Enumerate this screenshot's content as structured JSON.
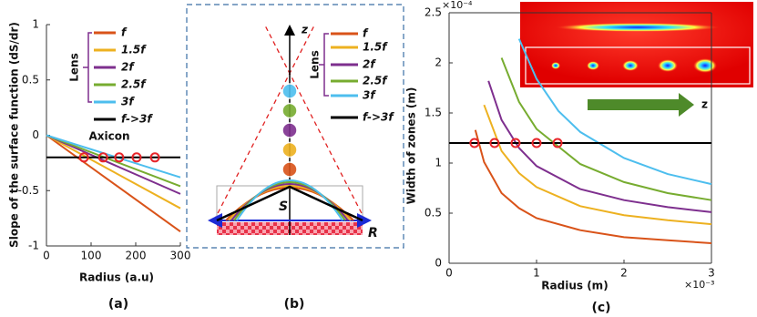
{
  "chart_data": [
    {
      "type": "line",
      "caption": "(a)",
      "xlabel": "Radius (a.u)",
      "ylabel": "Slope of the surface function (dS/dr)",
      "x": [
        0,
        300
      ],
      "xlim": [
        0,
        300
      ],
      "xticks": [
        0,
        100,
        200,
        300
      ],
      "ylim": [
        -1,
        1
      ],
      "yticks": [
        -1,
        -0.5,
        0,
        0.5,
        1
      ],
      "legend_title": "Lens",
      "annotation": "Axicon",
      "series": [
        {
          "name": "f",
          "color": "#d95319",
          "values": [
            0,
            -0.87
          ]
        },
        {
          "name": "1.5f",
          "color": "#edb120",
          "values": [
            0,
            -0.66
          ]
        },
        {
          "name": "2f",
          "color": "#7e2f8e",
          "values": [
            0,
            -0.53
          ]
        },
        {
          "name": "2.5f",
          "color": "#77ac30",
          "values": [
            0,
            -0.46
          ]
        },
        {
          "name": "3f",
          "color": "#4dbeee",
          "values": [
            0,
            -0.38
          ]
        },
        {
          "name": "f->3f",
          "color": "#000000",
          "values": [
            -0.2,
            -0.2
          ]
        }
      ],
      "markers": {
        "color": "#e8262b",
        "x": [
          84,
          127,
          163,
          202,
          243
        ],
        "y": [
          -0.2,
          -0.2,
          -0.2,
          -0.2,
          -0.2
        ]
      }
    },
    {
      "type": "line",
      "caption": "(c)",
      "xlabel": "Radius (m)",
      "ylabel": "Width of zones (m)",
      "xlim": [
        0,
        3
      ],
      "xticks": [
        0,
        1,
        2,
        3
      ],
      "ylim": [
        0,
        2.5
      ],
      "yticks": [
        0,
        0.5,
        1,
        1.5,
        2,
        2.5
      ],
      "x_multiplier": "×10⁻³",
      "y_multiplier": "×10⁻⁴",
      "inset_label": "z",
      "series": [
        {
          "color": "#d95319",
          "x": [
            0.3,
            0.4,
            0.6,
            0.8,
            1,
            1.5,
            2,
            2.5,
            3
          ],
          "values": [
            1.33,
            1.01,
            0.7,
            0.55,
            0.45,
            0.33,
            0.26,
            0.23,
            0.2
          ]
        },
        {
          "color": "#edb120",
          "x": [
            0.4,
            0.6,
            0.8,
            1,
            1.5,
            2,
            2.5,
            3
          ],
          "values": [
            1.58,
            1.12,
            0.9,
            0.76,
            0.57,
            0.48,
            0.43,
            0.39
          ]
        },
        {
          "color": "#7e2f8e",
          "x": [
            0.45,
            0.6,
            0.8,
            1,
            1.5,
            2,
            2.5,
            3
          ],
          "values": [
            1.82,
            1.43,
            1.15,
            0.97,
            0.74,
            0.63,
            0.56,
            0.51
          ]
        },
        {
          "color": "#77ac30",
          "x": [
            0.6,
            0.8,
            1,
            1.5,
            2,
            2.5,
            3
          ],
          "values": [
            2.05,
            1.61,
            1.34,
            0.99,
            0.81,
            0.7,
            0.63
          ]
        },
        {
          "color": "#4dbeee",
          "x": [
            0.8,
            1,
            1.25,
            1.5,
            2,
            2.5,
            3
          ],
          "values": [
            2.24,
            1.84,
            1.52,
            1.31,
            1.05,
            0.89,
            0.79
          ]
        },
        {
          "color": "#000000",
          "x": [
            0,
            3
          ],
          "values": [
            1.2,
            1.2
          ]
        }
      ],
      "markers": {
        "color": "#e8262b",
        "x": [
          0.29,
          0.52,
          0.76,
          1.0,
          1.24
        ],
        "y": [
          1.2,
          1.2,
          1.2,
          1.2,
          1.2
        ]
      }
    }
  ],
  "diagram": {
    "caption": "(b)",
    "z_label": "z",
    "s_label": "S",
    "r_label": "R",
    "legend_title": "Lens",
    "legend": [
      {
        "label": "f",
        "color": "#d95319"
      },
      {
        "label": "1.5f",
        "color": "#edb120"
      },
      {
        "label": "2f",
        "color": "#7e2f8e"
      },
      {
        "label": "2.5f",
        "color": "#77ac30"
      },
      {
        "label": "3f",
        "color": "#4dbeee"
      },
      {
        "label": "f->3f",
        "color": "#000000"
      }
    ]
  }
}
